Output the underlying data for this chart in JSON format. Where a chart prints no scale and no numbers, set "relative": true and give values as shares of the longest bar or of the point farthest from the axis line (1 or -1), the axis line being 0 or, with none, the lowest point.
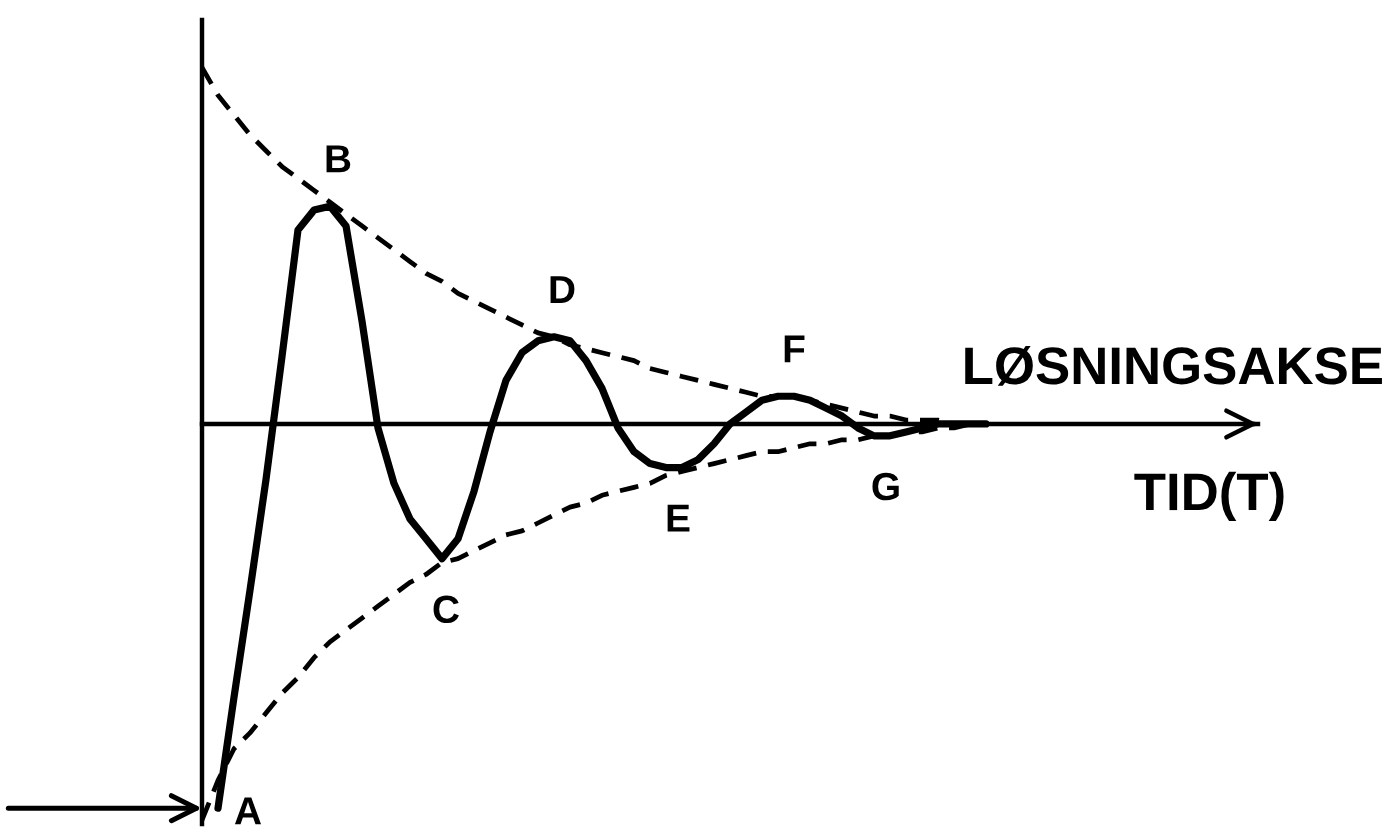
{
  "chart_data": {
    "type": "line",
    "xlabel": "TID(T)",
    "relative": true,
    "categories": [
      null,
      null,
      null,
      null,
      null,
      null,
      null,
      null,
      null,
      null,
      null,
      null,
      null,
      null,
      null,
      null,
      null,
      null,
      null,
      null,
      null,
      null,
      null,
      null,
      null,
      null,
      null,
      null,
      null,
      null,
      null,
      null,
      null,
      null,
      null,
      null,
      null,
      null,
      null,
      null,
      null,
      null,
      null,
      null,
      null,
      null,
      null,
      null,
      null,
      null,
      null,
      null,
      null,
      null,
      null,
      null,
      null,
      null,
      null,
      null,
      null,
      null,
      null,
      null,
      null,
      null,
      null
    ],
    "series": [
      {
        "color": "#000000",
        "line_style": "solid",
        "values": [
          null,
          -0.97,
          -0.69,
          -0.42,
          -0.14,
          0.17,
          0.49,
          0.54,
          0.55,
          0.5,
          0.26,
          -0.01,
          -0.15,
          -0.24,
          -0.29,
          -0.34,
          -0.29,
          -0.17,
          -0.02,
          0.11,
          0.18,
          0.21,
          0.22,
          0.21,
          0.16,
          0.09,
          -0.01,
          -0.07,
          -0.1,
          -0.11,
          -0.11,
          -0.09,
          -0.05,
          0.0,
          0.03,
          0.06,
          0.07,
          0.07,
          0.06,
          0.04,
          0.02,
          -0.01,
          -0.03,
          -0.03,
          -0.02,
          -0.01,
          0,
          0,
          0,
          0,
          null,
          null,
          null,
          null,
          null,
          null,
          null,
          null,
          null,
          null,
          null,
          null,
          null,
          null,
          null,
          null,
          null
        ]
      },
      {
        "color": "#000000",
        "line_style": "dashed",
        "values": [
          0.9,
          0.83,
          0.78,
          0.73,
          0.69,
          0.65,
          0.62,
          0.59,
          0.56,
          0.53,
          0.5,
          0.47,
          0.44,
          0.41,
          0.38,
          0.36,
          0.33,
          0.31,
          0.29,
          0.27,
          0.25,
          0.23,
          0.22,
          0.2,
          0.19,
          0.18,
          0.17,
          0.16,
          0.14,
          0.13,
          0.12,
          0.11,
          0.1,
          0.09,
          0.08,
          0.07,
          0.07,
          0.07,
          0.06,
          0.05,
          0.04,
          0.03,
          0.02,
          0.02,
          0.01,
          0.01,
          0.01,
          0,
          0,
          0,
          null,
          null,
          null,
          null,
          null,
          null,
          null,
          null,
          null,
          null,
          null,
          null,
          null,
          null,
          null,
          null,
          null
        ]
      },
      {
        "color": "#000000",
        "line_style": "dashed",
        "values": [
          -1.0,
          -0.9,
          -0.82,
          -0.78,
          -0.73,
          -0.68,
          -0.64,
          -0.59,
          -0.55,
          -0.52,
          -0.49,
          -0.46,
          -0.43,
          -0.4,
          -0.38,
          -0.35,
          -0.34,
          -0.32,
          -0.3,
          -0.28,
          -0.27,
          -0.25,
          -0.23,
          -0.21,
          -0.2,
          -0.18,
          -0.17,
          -0.16,
          -0.15,
          -0.13,
          -0.12,
          -0.11,
          -0.1,
          -0.09,
          -0.08,
          -0.07,
          -0.07,
          -0.06,
          -0.05,
          -0.05,
          -0.04,
          -0.04,
          -0.03,
          -0.03,
          -0.02,
          -0.02,
          -0.01,
          -0.01,
          0,
          0,
          null,
          null,
          null,
          null,
          null,
          null,
          null,
          null,
          null,
          null,
          null,
          null,
          null,
          null,
          null,
          null,
          null
        ]
      }
    ],
    "annotations": [
      "A",
      {
        "text": "B",
        "y": 0.55
      },
      {
        "text": "C",
        "y": -0.34
      },
      {
        "text": "D",
        "y": 0.22
      },
      {
        "text": "E",
        "y": -0.11
      },
      {
        "text": "F",
        "y": 0.07
      },
      {
        "text": "G",
        "y": -0.03
      },
      "LØSNINGSAKSE"
    ]
  }
}
